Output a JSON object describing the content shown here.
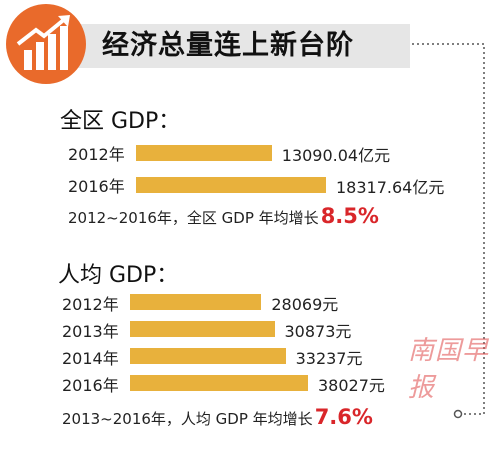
{
  "header": {
    "title": "经济总量连上新台阶",
    "icon": "bar-chart-growth-icon",
    "accent_color": "#e96a2b"
  },
  "chart_data": [
    {
      "type": "bar",
      "title": "全区 GDP：",
      "categories": [
        "2012年",
        "2016年"
      ],
      "values": [
        13090.04,
        18317.64
      ],
      "value_labels": [
        "13090.04亿元",
        "18317.64亿元"
      ],
      "unit": "亿元",
      "bar_color": "#e8b13c",
      "growth_text": "2012~2016年，全区 GDP 年均增长",
      "growth_value": "8.5%"
    },
    {
      "type": "bar",
      "title": "人均 GDP：",
      "categories": [
        "2012年",
        "2013年",
        "2014年",
        "2016年"
      ],
      "values": [
        28069,
        30873,
        33237,
        38027
      ],
      "value_labels": [
        "28069元",
        "30873元",
        "33237元",
        "38027元"
      ],
      "unit": "元",
      "bar_color": "#e8b13c",
      "growth_text": "2013~2016年，人均 GDP 年均增长",
      "growth_value": "7.6%"
    }
  ],
  "watermark": "南国早报"
}
